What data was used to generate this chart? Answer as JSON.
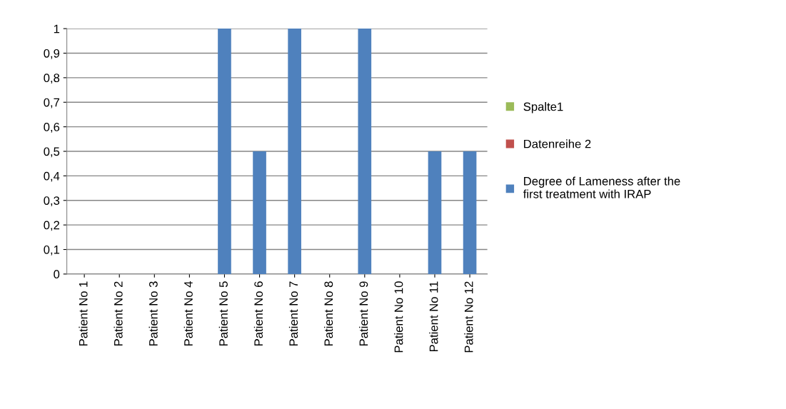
{
  "chart_data": {
    "type": "bar",
    "categories": [
      "Patient No 1",
      "Patient No 2",
      "Patient No 3",
      "Patient No 4",
      "Patient No 5",
      "Patient No 6",
      "Patient No 7",
      "Patient No 8",
      "Patient No 9",
      "Patient No 10",
      "Patient No 11",
      "Patient No 12"
    ],
    "series": [
      {
        "name": "Spalte1",
        "color": "#9bbb59",
        "values": [
          null,
          null,
          null,
          null,
          null,
          null,
          null,
          null,
          null,
          null,
          null,
          null
        ]
      },
      {
        "name": "Datenreihe 2",
        "color": "#c0504d",
        "values": [
          null,
          null,
          null,
          null,
          null,
          null,
          null,
          null,
          null,
          null,
          null,
          null
        ]
      },
      {
        "name": "Degree of Lameness after the first treatment with IRAP",
        "color": "#4f81bd",
        "values": [
          0,
          0,
          0,
          0,
          1,
          0.5,
          1,
          0,
          1,
          0,
          0.5,
          0.5
        ]
      }
    ],
    "ylim": [
      0,
      1
    ],
    "yticks": [
      0,
      {
        "value": 0.1,
        "label": "0,1"
      },
      {
        "value": 0.2,
        "label": "0,2"
      },
      {
        "value": 0.3,
        "label": "0,3"
      },
      {
        "value": 0.4,
        "label": "0,4"
      },
      {
        "value": 0.5,
        "label": "0,5"
      },
      {
        "value": 0.6,
        "label": "0,6"
      },
      {
        "value": 0.7,
        "label": "0,7"
      },
      {
        "value": 0.8,
        "label": "0,8"
      },
      {
        "value": 0.9,
        "label": "0,9"
      },
      1
    ],
    "grid": "y",
    "legend": "right"
  }
}
